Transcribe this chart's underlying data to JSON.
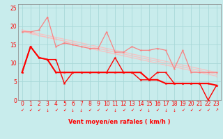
{
  "title": "",
  "xlabel": "Vent moyen/en rafales ( km/h )",
  "ylabel": "",
  "xlim": [
    -0.5,
    23.5
  ],
  "ylim": [
    0,
    26
  ],
  "yticks": [
    0,
    5,
    10,
    15,
    20,
    25
  ],
  "xticks": [
    0,
    1,
    2,
    3,
    4,
    5,
    6,
    7,
    8,
    9,
    10,
    11,
    12,
    13,
    14,
    15,
    16,
    17,
    18,
    19,
    20,
    21,
    22,
    23
  ],
  "bg_color": "#c8ecec",
  "grid_color": "#a8d8d8",
  "line_color_dark": "#ff0000",
  "line_color_mid": "#ff7777",
  "line_color_light": "#ffbbbb",
  "series_dark": [
    [
      7.5,
      14.5,
      11.5,
      11.0,
      7.5,
      7.5,
      7.5,
      7.5,
      7.5,
      7.5,
      7.5,
      7.5,
      7.5,
      7.5,
      7.5,
      5.5,
      5.5,
      4.5,
      4.5,
      4.5,
      4.5,
      4.5,
      4.5,
      4.0
    ],
    [
      7.5,
      14.5,
      11.5,
      11.0,
      11.0,
      4.5,
      7.5,
      7.5,
      7.5,
      7.5,
      7.5,
      11.5,
      7.5,
      7.5,
      5.5,
      5.5,
      7.5,
      7.5,
      4.5,
      4.5,
      4.5,
      4.5,
      0.0,
      4.0
    ]
  ],
  "series_mid": [
    [
      18.5,
      18.5,
      19.0,
      22.5,
      14.5,
      15.5,
      15.0,
      14.5,
      14.0,
      14.0,
      18.5,
      13.0,
      13.0,
      14.5,
      13.5,
      13.5,
      14.0,
      13.5,
      8.5,
      13.5,
      7.5,
      7.5,
      7.5,
      7.5
    ]
  ],
  "series_light_lines": [
    [
      19.0,
      18.5,
      18.0,
      17.5,
      17.0,
      16.5,
      16.0,
      15.5,
      15.0,
      14.5,
      14.0,
      13.5,
      13.0,
      12.5,
      12.0,
      11.5,
      11.0,
      10.5,
      10.0,
      9.5,
      9.0,
      8.5,
      8.0,
      7.5
    ],
    [
      19.0,
      18.5,
      17.5,
      17.0,
      16.5,
      16.0,
      15.5,
      15.0,
      14.5,
      14.0,
      13.5,
      13.0,
      12.5,
      12.0,
      11.5,
      11.0,
      10.5,
      10.0,
      9.5,
      9.0,
      8.5,
      8.0,
      7.5,
      7.0
    ],
    [
      19.0,
      18.0,
      17.5,
      17.0,
      16.5,
      16.0,
      15.0,
      14.5,
      14.0,
      13.5,
      13.0,
      12.5,
      12.0,
      11.5,
      11.0,
      10.5,
      10.0,
      9.5,
      9.0,
      8.5,
      8.0,
      7.5,
      7.0,
      6.5
    ]
  ],
  "arrow_dirs": [
    "sw",
    "sw",
    "sw",
    "down",
    "sw",
    "sw",
    "down",
    "down",
    "sw",
    "sw",
    "sw",
    "down",
    "sw",
    "sw",
    "sw",
    "down",
    "sw",
    "down",
    "down",
    "sw",
    "sw",
    "sw",
    "sw",
    "ne"
  ],
  "arrow_color": "#ff0000"
}
